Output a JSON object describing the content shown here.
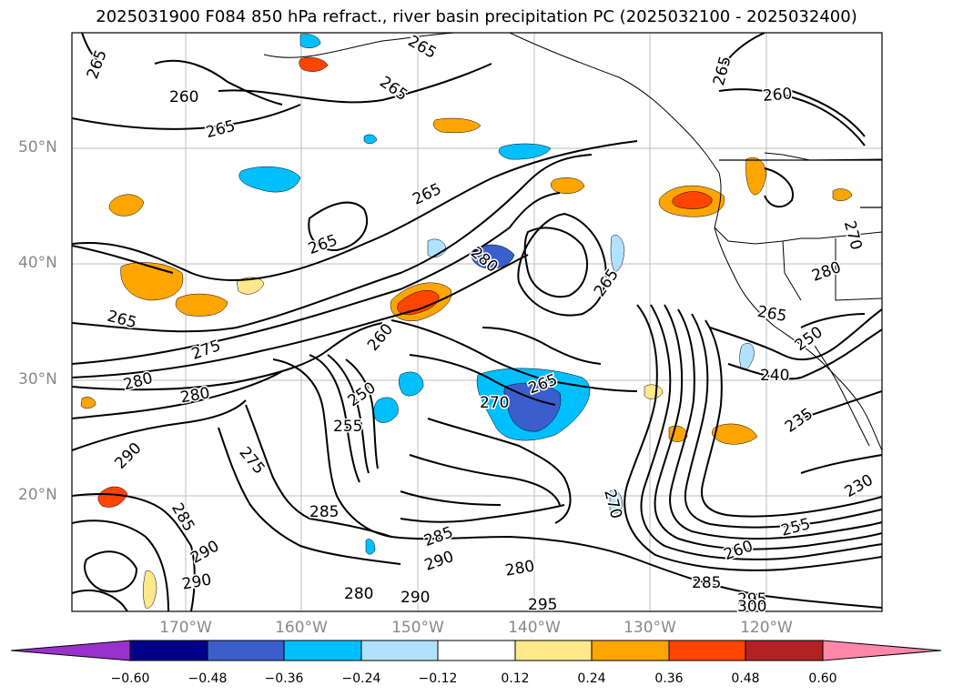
{
  "title": "2025031900 F084 850 hPa refract., river basin precipitation PC (2025032100 - 2025032400)",
  "lat_labels": [
    "50°N",
    "40°N",
    "30°N",
    "20°N"
  ],
  "lon_labels": [
    "170°W",
    "160°W",
    "150°W",
    "140°W",
    "130°W",
    "120°W"
  ],
  "colorbar": {
    "ticks": [
      "−0.60",
      "−0.48",
      "−0.36",
      "−0.24",
      "−0.12",
      "0.12",
      "0.24",
      "0.36",
      "0.48",
      "0.60"
    ],
    "colors": [
      "#9932CC",
      "#00008B",
      "#3A5FCD",
      "#00BFFF",
      "#B0E2FF",
      "#FFFFFF",
      "#FFE88A",
      "#FFA500",
      "#FF4500",
      "#B22222",
      "#FF88AA"
    ]
  },
  "contour_labels": [
    "265",
    "265",
    "260",
    "265",
    "265",
    "265",
    "260",
    "265",
    "265",
    "265",
    "280",
    "265",
    "270",
    "275",
    "280",
    "280",
    "280",
    "290",
    "260",
    "250",
    "255",
    "275",
    "270",
    "265",
    "250",
    "240",
    "235",
    "285",
    "285",
    "290",
    "290",
    "280",
    "285",
    "280",
    "290",
    "290",
    "295",
    "260",
    "255",
    "230",
    "285",
    "295",
    "300",
    "270",
    "265"
  ]
}
